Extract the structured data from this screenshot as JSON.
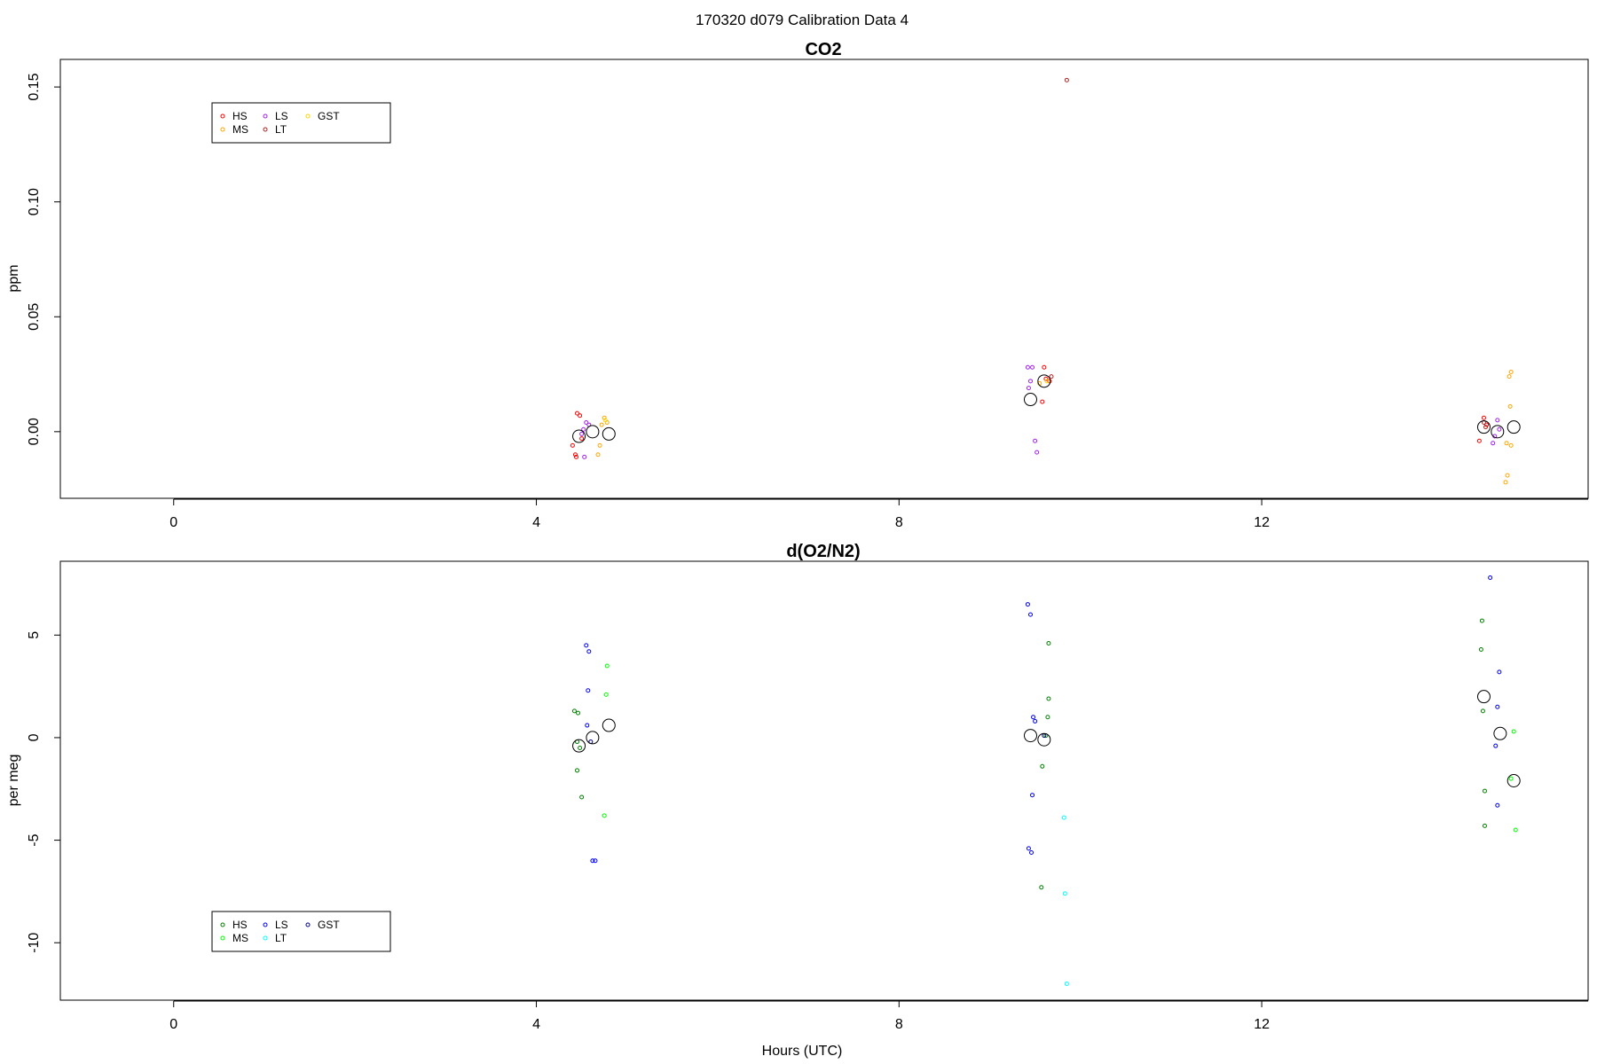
{
  "outer_title": "170320   d079   Calibration Data 4",
  "chart_data": [
    {
      "type": "scatter",
      "title": "CO2",
      "xlabel": "",
      "ylabel": "ppm",
      "xlim": [
        -1.25,
        15.6
      ],
      "ylim": [
        -0.029,
        0.162
      ],
      "x_ticks": [
        0,
        4,
        8,
        12
      ],
      "x_tick_labels": [
        "0",
        "4",
        "8",
        "12"
      ],
      "y_ticks": [
        0.0,
        0.05,
        0.1,
        0.15
      ],
      "y_tick_labels": [
        "0.00",
        "0.05",
        "0.10",
        "0.15"
      ],
      "grid": false,
      "legend_position": "top-left",
      "legend": [
        {
          "label": "HS",
          "color": "#ff0000"
        },
        {
          "label": "MS",
          "color": "#ffa500"
        },
        {
          "label": "LS",
          "color": "#a020f0"
        },
        {
          "label": "LT",
          "color": "#b22222"
        },
        {
          "label": "GST",
          "color": "#ffd700"
        }
      ],
      "series": [
        {
          "name": "HS",
          "color": "#ff0000",
          "points": [
            [
              4.45,
              0.008
            ],
            [
              4.48,
              0.007
            ],
            [
              4.4,
              -0.006
            ],
            [
              4.43,
              -0.01
            ],
            [
              4.44,
              -0.011
            ],
            [
              4.5,
              -0.003
            ],
            [
              9.6,
              0.028
            ],
            [
              9.62,
              0.023
            ],
            [
              9.58,
              0.013
            ],
            [
              9.66,
              0.022
            ],
            [
              14.45,
              0.006
            ],
            [
              14.4,
              -0.004
            ],
            [
              14.48,
              0.003
            ]
          ]
        },
        {
          "name": "MS",
          "color": "#ffa500",
          "points": [
            [
              4.75,
              0.006
            ],
            [
              4.78,
              0.004
            ],
            [
              4.72,
              0.003
            ],
            [
              4.7,
              -0.006
            ],
            [
              4.68,
              -0.01
            ],
            [
              9.55,
              0.021
            ],
            [
              14.75,
              0.026
            ],
            [
              14.73,
              0.024
            ],
            [
              14.74,
              0.011
            ],
            [
              14.7,
              -0.005
            ],
            [
              14.75,
              -0.006
            ],
            [
              14.71,
              -0.019
            ],
            [
              14.69,
              -0.022
            ]
          ]
        },
        {
          "name": "LS",
          "color": "#a020f0",
          "points": [
            [
              4.55,
              0.004
            ],
            [
              4.58,
              0.003
            ],
            [
              4.52,
              0.001
            ],
            [
              4.5,
              -0.001
            ],
            [
              4.53,
              -0.011
            ],
            [
              9.42,
              0.028
            ],
            [
              9.47,
              0.028
            ],
            [
              9.43,
              0.019
            ],
            [
              9.45,
              0.022
            ],
            [
              9.5,
              -0.004
            ],
            [
              9.52,
              -0.009
            ],
            [
              14.6,
              0.005
            ],
            [
              14.57,
              -0.002
            ],
            [
              14.55,
              -0.005
            ],
            [
              14.62,
              0.001
            ]
          ]
        },
        {
          "name": "LT",
          "color": "#b22222",
          "points": [
            [
              9.85,
              0.153
            ],
            [
              9.68,
              0.024
            ],
            [
              14.45,
              0.004
            ],
            [
              14.47,
              0.002
            ]
          ]
        },
        {
          "name": "GST",
          "color": "#ffd700",
          "points": [
            [
              4.76,
              0.005
            ],
            [
              9.63,
              0.022
            ]
          ]
        },
        {
          "name": "mean",
          "color": "#000000",
          "large": true,
          "points": [
            [
              4.47,
              -0.002
            ],
            [
              4.62,
              0.0
            ],
            [
              4.8,
              -0.001
            ],
            [
              9.45,
              0.014
            ],
            [
              9.6,
              0.022
            ],
            [
              14.45,
              0.002
            ],
            [
              14.6,
              0.0
            ],
            [
              14.78,
              0.002
            ]
          ]
        }
      ]
    },
    {
      "type": "scatter",
      "title": "d(O2/N2)",
      "xlabel": "Hours (UTC)",
      "ylabel": "per meg",
      "xlim": [
        -1.25,
        15.6
      ],
      "ylim": [
        -12.8,
        8.6
      ],
      "x_ticks": [
        0,
        4,
        8,
        12
      ],
      "x_tick_labels": [
        "0",
        "4",
        "8",
        "12"
      ],
      "y_ticks": [
        -10,
        -5,
        0,
        5
      ],
      "y_tick_labels": [
        "-10",
        "-5",
        "0",
        "5"
      ],
      "grid": false,
      "legend_position": "bottom-left",
      "legend": [
        {
          "label": "HS",
          "color": "#008000"
        },
        {
          "label": "MS",
          "color": "#00ff00"
        },
        {
          "label": "LS",
          "color": "#0000ff"
        },
        {
          "label": "LT",
          "color": "#00ffff"
        },
        {
          "label": "GST",
          "color": "#000080"
        }
      ],
      "series": [
        {
          "name": "HS",
          "color": "#008000",
          "points": [
            [
              4.42,
              1.3
            ],
            [
              4.46,
              1.2
            ],
            [
              4.45,
              -0.2
            ],
            [
              4.48,
              -0.5
            ],
            [
              4.45,
              -1.6
            ],
            [
              4.5,
              -2.9
            ],
            [
              9.65,
              4.6
            ],
            [
              9.65,
              1.9
            ],
            [
              9.64,
              1.0
            ],
            [
              9.62,
              0.1
            ],
            [
              9.58,
              -1.4
            ],
            [
              9.57,
              -7.3
            ],
            [
              14.43,
              5.7
            ],
            [
              14.42,
              4.3
            ],
            [
              14.44,
              1.3
            ],
            [
              14.46,
              -2.6
            ],
            [
              14.46,
              -4.3
            ]
          ]
        },
        {
          "name": "MS",
          "color": "#00ff00",
          "points": [
            [
              4.78,
              3.5
            ],
            [
              4.77,
              2.1
            ],
            [
              4.75,
              -3.8
            ],
            [
              14.78,
              0.3
            ],
            [
              14.75,
              -2.0
            ],
            [
              14.8,
              -4.5
            ]
          ]
        },
        {
          "name": "LS",
          "color": "#0000ff",
          "points": [
            [
              4.55,
              4.5
            ],
            [
              4.58,
              4.2
            ],
            [
              4.57,
              2.3
            ],
            [
              4.56,
              0.6
            ],
            [
              4.62,
              -6.0
            ],
            [
              4.65,
              -6.0
            ],
            [
              9.42,
              6.5
            ],
            [
              9.45,
              6.0
            ],
            [
              9.48,
              1.0
            ],
            [
              9.5,
              0.8
            ],
            [
              9.47,
              -2.8
            ],
            [
              9.43,
              -5.4
            ],
            [
              9.46,
              -5.6
            ],
            [
              14.52,
              7.8
            ],
            [
              14.62,
              3.2
            ],
            [
              14.6,
              1.5
            ],
            [
              14.58,
              -0.4
            ],
            [
              14.6,
              -3.3
            ]
          ]
        },
        {
          "name": "LT",
          "color": "#00ffff",
          "points": [
            [
              9.82,
              -3.9
            ],
            [
              9.83,
              -7.6
            ],
            [
              9.85,
              -12.0
            ]
          ]
        },
        {
          "name": "GST",
          "color": "#000080",
          "points": [
            [
              4.6,
              -0.2
            ],
            [
              9.6,
              0.1
            ]
          ]
        },
        {
          "name": "mean",
          "color": "#000000",
          "large": true,
          "points": [
            [
              4.47,
              -0.4
            ],
            [
              4.62,
              0.0
            ],
            [
              4.8,
              0.6
            ],
            [
              9.45,
              0.1
            ],
            [
              9.6,
              -0.1
            ],
            [
              14.45,
              2.0
            ],
            [
              14.63,
              0.2
            ],
            [
              14.78,
              -2.1
            ]
          ]
        }
      ]
    }
  ]
}
